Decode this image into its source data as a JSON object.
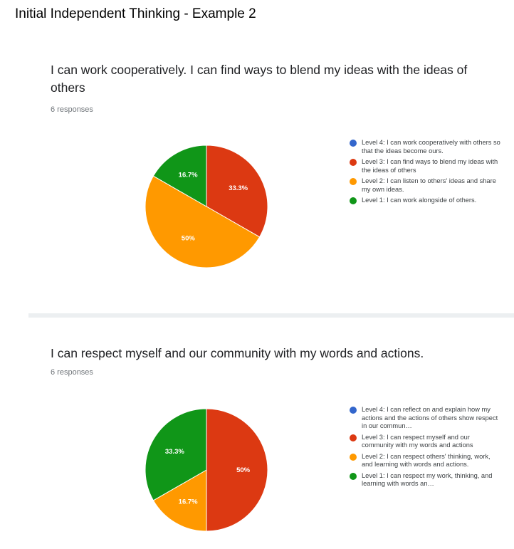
{
  "page": {
    "title": "Initial Independent Thinking - Example 2"
  },
  "charts": [
    {
      "question": "I can work cooperatively. I can find ways to blend my ideas with the ideas of others",
      "responses": "6 responses"
    },
    {
      "question": "I can respect myself and our community with my words and actions.",
      "responses": "6 responses"
    }
  ],
  "colors": {
    "level4": "#3366cc",
    "level3": "#dc3912",
    "level2": "#ff9900",
    "level1": "#109618"
  },
  "chart_data": [
    {
      "type": "pie",
      "title": "I can work cooperatively. I can find ways to blend my ideas with the ideas of others",
      "legend": "right",
      "slices": [
        {
          "label": "Level 4: I can work cooperatively with others so that the ideas become ours.",
          "value": 0,
          "display": "",
          "color": "#3366cc"
        },
        {
          "label": "Level 3: I can find ways to blend my ideas with the ideas of others",
          "value": 33.3,
          "display": "33.3%",
          "color": "#dc3912"
        },
        {
          "label": "Level 2: I can listen to others' ideas and share my own ideas.",
          "value": 50,
          "display": "50%",
          "color": "#ff9900"
        },
        {
          "label": "Level 1: I can work alongside of others.",
          "value": 16.7,
          "display": "16.7%",
          "color": "#109618"
        }
      ]
    },
    {
      "type": "pie",
      "title": "I can respect myself and our community with my words and actions.",
      "legend": "right",
      "slices": [
        {
          "label": "Level 4: I can reflect on and explain how my actions and the actions of others show respect in our commun…",
          "value": 0,
          "display": "",
          "color": "#3366cc"
        },
        {
          "label": "Level 3: I can respect myself and our community with my words and actions",
          "value": 50,
          "display": "50%",
          "color": "#dc3912"
        },
        {
          "label": "Level 2: I can respect others' thinking, work, and learning with words and actions.",
          "value": 16.7,
          "display": "16.7%",
          "color": "#ff9900"
        },
        {
          "label": "Level 1: I can respect my work, thinking, and learning with words an…",
          "value": 33.3,
          "display": "33.3%",
          "color": "#109618"
        }
      ]
    }
  ]
}
